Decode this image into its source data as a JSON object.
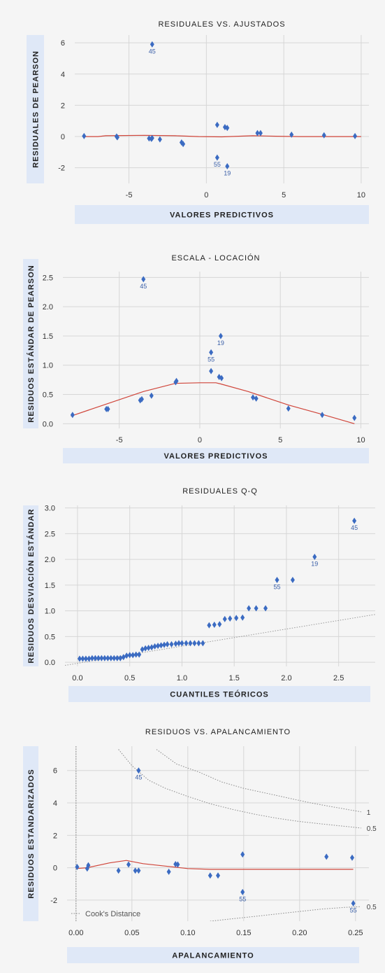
{
  "chart_data": [
    {
      "type": "scatter",
      "title": "RESIDUALES VS. AJUSTADOS",
      "xlabel": "VALORES PREDICTIVOS",
      "ylabel": "RESIDUALES DE PEARSON",
      "xlim": [
        -8.5,
        10.5
      ],
      "ylim": [
        -3,
        6.5
      ],
      "xticks": [
        -5,
        0,
        5,
        10
      ],
      "yticks": [
        -2,
        0,
        2,
        4,
        6
      ],
      "grid": true,
      "points": [
        {
          "x": -7.9,
          "y": 0.03
        },
        {
          "x": -5.8,
          "y": 0.0
        },
        {
          "x": -5.75,
          "y": -0.05
        },
        {
          "x": -3.7,
          "y": -0.12
        },
        {
          "x": -3.55,
          "y": -0.15
        },
        {
          "x": -3.5,
          "y": -0.1
        },
        {
          "x": -3.0,
          "y": -0.18
        },
        {
          "x": -1.6,
          "y": -0.38
        },
        {
          "x": -1.5,
          "y": -0.48
        },
        {
          "x": -3.5,
          "y": 5.9,
          "label": "45"
        },
        {
          "x": 0.7,
          "y": 0.75
        },
        {
          "x": 1.2,
          "y": 0.6
        },
        {
          "x": 1.35,
          "y": 0.55
        },
        {
          "x": 0.7,
          "y": -1.35,
          "label": "55"
        },
        {
          "x": 1.35,
          "y": -1.9,
          "label": "19"
        },
        {
          "x": 3.3,
          "y": 0.22
        },
        {
          "x": 3.5,
          "y": 0.22
        },
        {
          "x": 5.5,
          "y": 0.12
        },
        {
          "x": 7.6,
          "y": 0.08
        },
        {
          "x": 9.6,
          "y": 0.03
        }
      ],
      "smooth_line": {
        "x": [
          -8,
          -7,
          -6.5,
          -4,
          -2,
          -0.5,
          1,
          3,
          4.5,
          6,
          8,
          10
        ],
        "y": [
          0,
          0,
          0.05,
          0.08,
          0.05,
          0.0,
          -0.02,
          0.05,
          0.02,
          0.0,
          0.0,
          0.0
        ]
      }
    },
    {
      "type": "scatter",
      "title": "ESCALA - LOCACIÓN",
      "xlabel": "VALORES PREDICTIVOS",
      "ylabel": "RESIDUOS  ESTÁNDAR DE PEARSON",
      "xlim": [
        -8.5,
        10.5
      ],
      "ylim": [
        -0.08,
        2.6
      ],
      "xticks": [
        -5,
        0,
        5,
        10
      ],
      "yticks": [
        0.0,
        0.5,
        1.0,
        1.5,
        2.0,
        2.5
      ],
      "grid": true,
      "points": [
        {
          "x": -7.9,
          "y": 0.15
        },
        {
          "x": -5.8,
          "y": 0.25
        },
        {
          "x": -5.7,
          "y": 0.25
        },
        {
          "x": -3.7,
          "y": 0.4
        },
        {
          "x": -3.6,
          "y": 0.42
        },
        {
          "x": -3.0,
          "y": 0.48
        },
        {
          "x": -1.5,
          "y": 0.71
        },
        {
          "x": -1.45,
          "y": 0.73
        },
        {
          "x": -3.5,
          "y": 2.47,
          "label": "45"
        },
        {
          "x": 0.7,
          "y": 0.9
        },
        {
          "x": 1.2,
          "y": 0.8
        },
        {
          "x": 1.35,
          "y": 0.78
        },
        {
          "x": 0.7,
          "y": 1.22,
          "label": "55"
        },
        {
          "x": 1.3,
          "y": 1.5,
          "label": "19"
        },
        {
          "x": 3.3,
          "y": 0.45
        },
        {
          "x": 3.5,
          "y": 0.43
        },
        {
          "x": 5.5,
          "y": 0.26
        },
        {
          "x": 7.6,
          "y": 0.15
        },
        {
          "x": 9.6,
          "y": 0.1
        }
      ],
      "smooth_line": {
        "x": [
          -8,
          -3.5,
          -1.5,
          0,
          1,
          1.3,
          3,
          5.5,
          7.6,
          9.6
        ],
        "y": [
          0.13,
          0.55,
          0.69,
          0.7,
          0.7,
          0.68,
          0.55,
          0.32,
          0.16,
          0.0
        ]
      }
    },
    {
      "type": "scatter",
      "title": "RESIDUALES Q-Q",
      "xlabel": "CUANTILES TEÓRICOS",
      "ylabel": "RESIDUOS DESVIACIÓN ESTÁNDAR",
      "xlim": [
        -0.12,
        2.85
      ],
      "ylim": [
        -0.08,
        3.05
      ],
      "xticks": [
        0.0,
        0.5,
        1.0,
        1.5,
        2.0,
        2.5
      ],
      "yticks": [
        0.0,
        0.5,
        1.0,
        1.5,
        2.0,
        2.5,
        3.0
      ],
      "grid": true,
      "points": [
        {
          "x": 0.02,
          "y": 0.07
        },
        {
          "x": 0.05,
          "y": 0.07
        },
        {
          "x": 0.08,
          "y": 0.07
        },
        {
          "x": 0.11,
          "y": 0.07
        },
        {
          "x": 0.14,
          "y": 0.08
        },
        {
          "x": 0.17,
          "y": 0.08
        },
        {
          "x": 0.2,
          "y": 0.08
        },
        {
          "x": 0.23,
          "y": 0.08
        },
        {
          "x": 0.26,
          "y": 0.08
        },
        {
          "x": 0.29,
          "y": 0.08
        },
        {
          "x": 0.32,
          "y": 0.08
        },
        {
          "x": 0.35,
          "y": 0.08
        },
        {
          "x": 0.38,
          "y": 0.08
        },
        {
          "x": 0.41,
          "y": 0.08
        },
        {
          "x": 0.44,
          "y": 0.1
        },
        {
          "x": 0.47,
          "y": 0.13
        },
        {
          "x": 0.5,
          "y": 0.14
        },
        {
          "x": 0.53,
          "y": 0.14
        },
        {
          "x": 0.56,
          "y": 0.15
        },
        {
          "x": 0.59,
          "y": 0.15
        },
        {
          "x": 0.62,
          "y": 0.25
        },
        {
          "x": 0.65,
          "y": 0.27
        },
        {
          "x": 0.68,
          "y": 0.28
        },
        {
          "x": 0.71,
          "y": 0.29
        },
        {
          "x": 0.74,
          "y": 0.31
        },
        {
          "x": 0.77,
          "y": 0.32
        },
        {
          "x": 0.8,
          "y": 0.33
        },
        {
          "x": 0.83,
          "y": 0.34
        },
        {
          "x": 0.86,
          "y": 0.35
        },
        {
          "x": 0.9,
          "y": 0.35
        },
        {
          "x": 0.94,
          "y": 0.36
        },
        {
          "x": 0.97,
          "y": 0.37
        },
        {
          "x": 1.0,
          "y": 0.37
        },
        {
          "x": 1.04,
          "y": 0.37
        },
        {
          "x": 1.08,
          "y": 0.37
        },
        {
          "x": 1.12,
          "y": 0.37
        },
        {
          "x": 1.16,
          "y": 0.37
        },
        {
          "x": 1.2,
          "y": 0.37
        },
        {
          "x": 1.26,
          "y": 0.72
        },
        {
          "x": 1.31,
          "y": 0.73
        },
        {
          "x": 1.36,
          "y": 0.74
        },
        {
          "x": 1.41,
          "y": 0.84
        },
        {
          "x": 1.46,
          "y": 0.85
        },
        {
          "x": 1.52,
          "y": 0.86
        },
        {
          "x": 1.58,
          "y": 0.87
        },
        {
          "x": 1.64,
          "y": 1.05
        },
        {
          "x": 1.71,
          "y": 1.05
        },
        {
          "x": 1.8,
          "y": 1.05
        },
        {
          "x": 1.91,
          "y": 1.6,
          "label": "55"
        },
        {
          "x": 2.06,
          "y": 1.6
        },
        {
          "x": 2.27,
          "y": 2.05,
          "label": "19"
        },
        {
          "x": 2.65,
          "y": 2.75,
          "label": "45"
        }
      ],
      "reference_line": {
        "x": [
          -0.12,
          2.85
        ],
        "y": [
          -0.06,
          0.93
        ]
      }
    },
    {
      "type": "scatter",
      "title": "RESIDUOS VS. APALANCAMIENTO",
      "xlabel": "APALANCAMIENTO",
      "ylabel": "RESIDUOS  ESTANDARIZADOS",
      "xlim": [
        -0.008,
        0.262
      ],
      "ylim": [
        -3.3,
        7.5
      ],
      "xticks": [
        0.0,
        0.05,
        0.1,
        0.15,
        0.2,
        0.25
      ],
      "yticks": [
        -2,
        0,
        2,
        4,
        6
      ],
      "grid": true,
      "legend": "Cook's Distance",
      "legend_position": "bottom-left",
      "cook_levels": [
        "1",
        "0.5",
        "0.5"
      ],
      "points": [
        {
          "x": 0.001,
          "y": 0.05
        },
        {
          "x": 0.01,
          "y": -0.05
        },
        {
          "x": 0.011,
          "y": 0.15
        },
        {
          "x": 0.038,
          "y": -0.18
        },
        {
          "x": 0.047,
          "y": 0.2
        },
        {
          "x": 0.056,
          "y": 6.0,
          "label": "45"
        },
        {
          "x": 0.053,
          "y": -0.18
        },
        {
          "x": 0.056,
          "y": -0.18
        },
        {
          "x": 0.083,
          "y": -0.25
        },
        {
          "x": 0.089,
          "y": 0.22
        },
        {
          "x": 0.091,
          "y": 0.2
        },
        {
          "x": 0.12,
          "y": -0.48
        },
        {
          "x": 0.127,
          "y": -0.48
        },
        {
          "x": 0.149,
          "y": 0.82
        },
        {
          "x": 0.149,
          "y": -1.5,
          "label": "55"
        },
        {
          "x": 0.224,
          "y": 0.68
        },
        {
          "x": 0.247,
          "y": 0.62
        },
        {
          "x": 0.248,
          "y": -2.2,
          "label": "55"
        }
      ],
      "smooth_line": {
        "x": [
          0.0,
          0.01,
          0.03,
          0.045,
          0.06,
          0.08,
          0.1,
          0.12,
          0.15,
          0.2,
          0.248
        ],
        "y": [
          -0.05,
          0.0,
          0.3,
          0.45,
          0.25,
          0.1,
          -0.05,
          -0.1,
          -0.1,
          -0.1,
          -0.1
        ]
      },
      "cook_curves": [
        {
          "level": "1",
          "x": [
            0.072,
            0.09,
            0.11,
            0.13,
            0.15,
            0.17,
            0.19,
            0.21,
            0.23,
            0.255
          ],
          "y": [
            7.3,
            6.4,
            5.9,
            5.3,
            4.9,
            4.6,
            4.3,
            4.0,
            3.75,
            3.45
          ]
        },
        {
          "level": "0.5",
          "x": [
            0.038,
            0.05,
            0.065,
            0.08,
            0.1,
            0.12,
            0.14,
            0.16,
            0.18,
            0.2,
            0.22,
            0.255
          ],
          "y": [
            7.3,
            6.3,
            5.4,
            4.9,
            4.4,
            3.95,
            3.6,
            3.3,
            3.05,
            2.85,
            2.7,
            2.45
          ]
        },
        {
          "level": "0.5",
          "x": [
            0.12,
            0.14,
            0.16,
            0.18,
            0.2,
            0.22,
            0.24,
            0.255
          ],
          "y": [
            -3.3,
            -3.15,
            -3.0,
            -2.85,
            -2.7,
            -2.55,
            -2.45,
            -2.4
          ]
        }
      ]
    }
  ]
}
